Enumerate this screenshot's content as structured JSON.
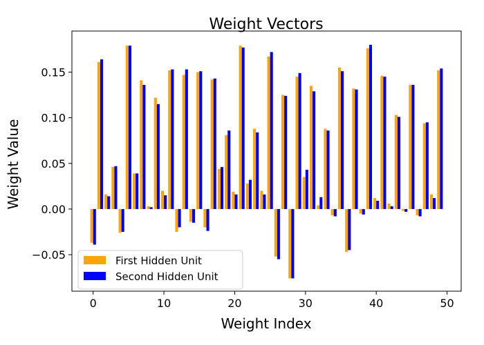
{
  "chart_data": {
    "type": "bar",
    "title": "Weight Vectors",
    "xlabel": "Weight Index",
    "ylabel": "Weight Value",
    "xlim": [
      -3,
      52
    ],
    "ylim": [
      -0.09,
      0.195
    ],
    "xticks": [
      0,
      10,
      20,
      30,
      40,
      50
    ],
    "yticks": [
      -0.05,
      0.0,
      0.05,
      0.1,
      0.15
    ],
    "ytick_labels": [
      "−0.05",
      "0.00",
      "0.05",
      "0.10",
      "0.15"
    ],
    "grid": false,
    "legend_position": "lower-left",
    "x": [
      0,
      1,
      2,
      3,
      4,
      5,
      6,
      7,
      8,
      9,
      10,
      11,
      12,
      13,
      14,
      15,
      16,
      17,
      18,
      19,
      20,
      21,
      22,
      23,
      24,
      25,
      26,
      27,
      28,
      29,
      30,
      31,
      32,
      33,
      34,
      35,
      36,
      37,
      38,
      39,
      40,
      41,
      42,
      43,
      44,
      45,
      46,
      47,
      48,
      49
    ],
    "series": [
      {
        "name": "First Hidden Unit",
        "color": "#ffa500",
        "values": [
          -0.037,
          0.161,
          0.016,
          0.046,
          -0.026,
          0.179,
          0.039,
          0.141,
          0.003,
          0.122,
          0.02,
          0.152,
          -0.025,
          0.147,
          -0.014,
          0.15,
          -0.02,
          0.142,
          0.044,
          0.081,
          0.019,
          0.179,
          0.028,
          0.088,
          0.02,
          0.167,
          -0.052,
          0.125,
          -0.076,
          0.145,
          0.035,
          0.135,
          0.004,
          0.088,
          -0.007,
          0.155,
          -0.047,
          0.132,
          -0.005,
          0.176,
          0.012,
          0.146,
          0.006,
          0.103,
          -0.002,
          0.136,
          -0.007,
          0.094,
          0.016,
          0.152
        ]
      },
      {
        "name": "Second Hidden Unit",
        "color": "#0000ff",
        "values": [
          -0.039,
          0.164,
          0.014,
          0.047,
          -0.025,
          0.179,
          0.039,
          0.136,
          0.002,
          0.115,
          0.015,
          0.153,
          -0.02,
          0.153,
          -0.015,
          0.151,
          -0.024,
          0.143,
          0.046,
          0.086,
          0.016,
          0.177,
          0.032,
          0.084,
          0.016,
          0.172,
          -0.055,
          0.124,
          -0.076,
          0.149,
          0.043,
          0.129,
          0.013,
          0.086,
          -0.008,
          0.151,
          -0.045,
          0.131,
          -0.006,
          0.18,
          0.009,
          0.145,
          0.003,
          0.101,
          -0.003,
          0.136,
          -0.008,
          0.095,
          0.012,
          0.154
        ]
      }
    ]
  }
}
